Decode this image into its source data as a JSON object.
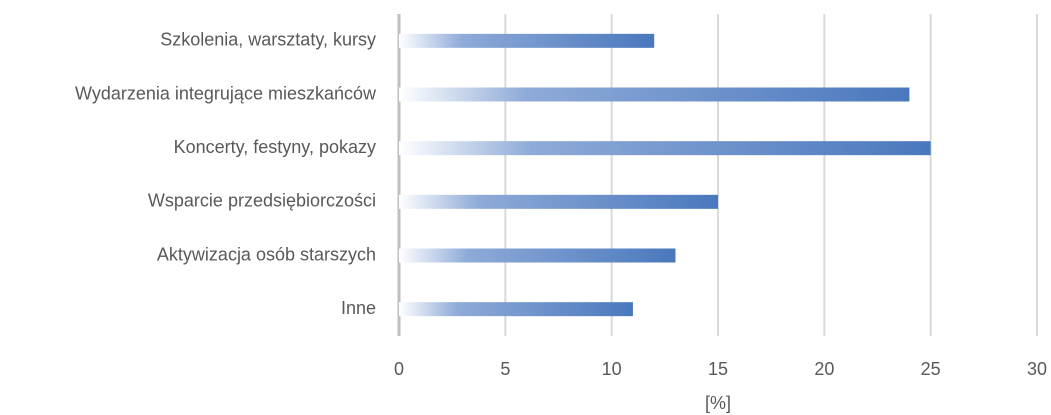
{
  "chart_data": {
    "type": "bar",
    "orientation": "horizontal",
    "categories": [
      "Szkolenia, warsztaty, kursy",
      "Wydarzenia integrujące mieszkańców",
      "Koncerty, festyny, pokazy",
      "Wsparcie przedsiębiorczości",
      "Aktywizacja osób starszych",
      "Inne"
    ],
    "values": [
      12,
      24,
      25,
      15,
      13,
      11
    ],
    "color": "#4a78bd",
    "x_label": "[%]",
    "xlim": [
      0,
      30
    ],
    "xticks": [
      0,
      5,
      10,
      15,
      20,
      25,
      30
    ],
    "grid": true
  }
}
